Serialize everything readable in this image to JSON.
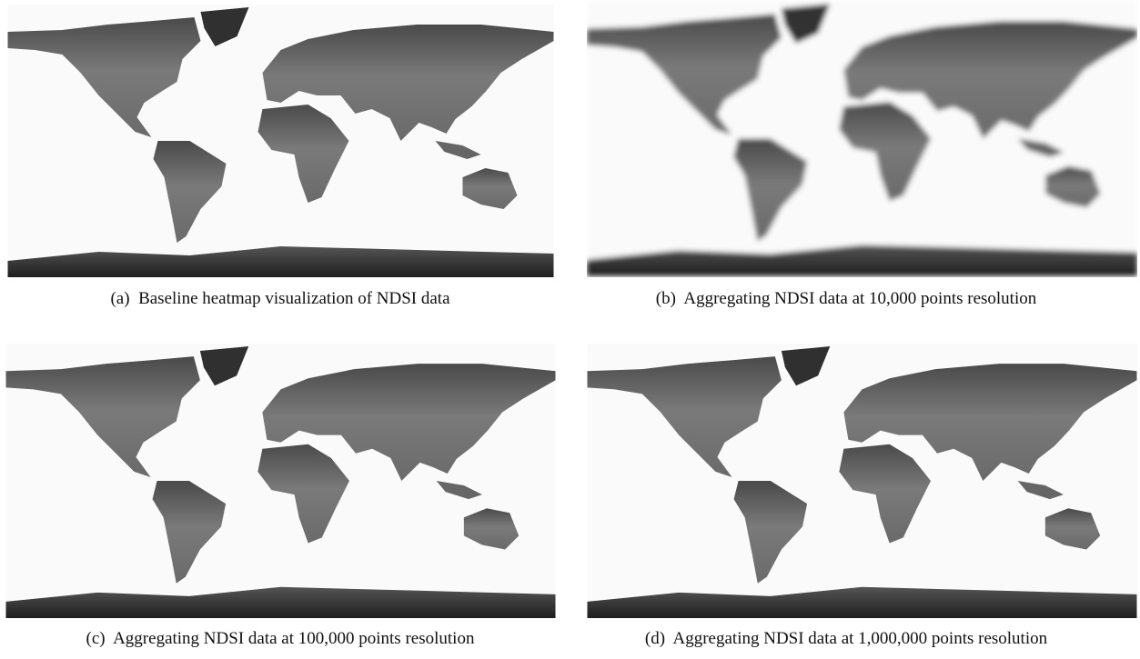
{
  "panels": [
    {
      "caption": "(a)  Baseline heatmap visualization of NDSI data"
    },
    {
      "caption": "(b)  Aggregating NDSI data at 10,000 points resolution"
    },
    {
      "caption": "(c)  Aggregating NDSI data at 100,000 points resolution"
    },
    {
      "caption": "(d)  Aggregating NDSI data at 1,000,000 points resolution"
    }
  ]
}
